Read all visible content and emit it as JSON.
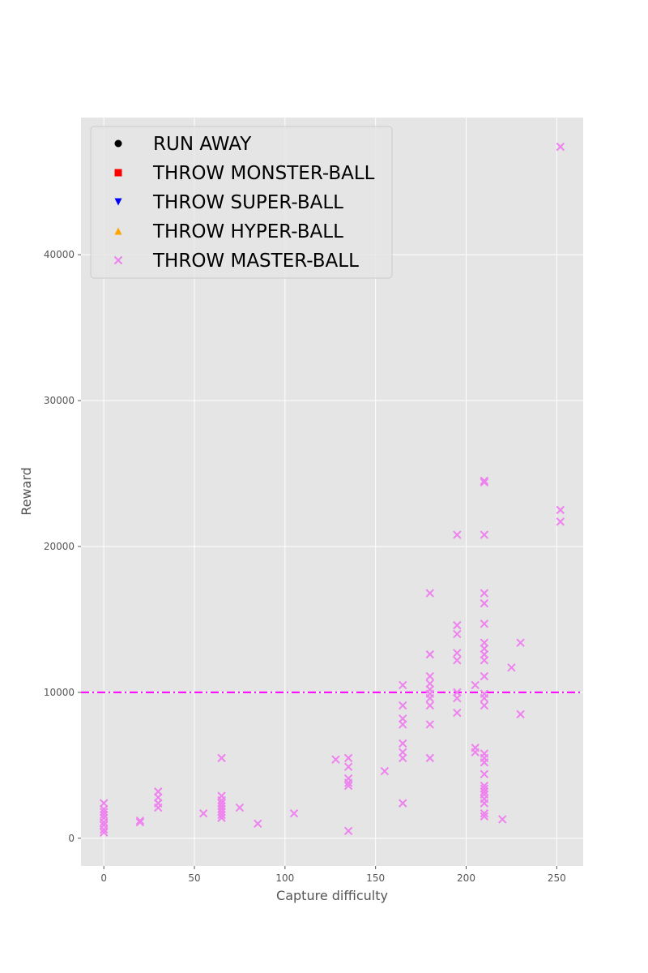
{
  "chart_data": {
    "type": "scatter",
    "xlabel": "Capture difficulty",
    "ylabel": "Reward",
    "xlim": [
      -12.6,
      264.6
    ],
    "ylim": [
      -1900,
      49400
    ],
    "xticks": [
      0,
      50,
      100,
      150,
      200,
      250
    ],
    "yticks": [
      0,
      10000,
      20000,
      30000,
      40000
    ],
    "grid": true,
    "legend_position": "top-left",
    "colors": {
      "background": "#e5e5e5",
      "grid": "#ffffff",
      "threshold": "#ff00ff"
    },
    "threshold_line": {
      "y": 10000,
      "style": "dash-dot"
    },
    "series": [
      {
        "name": "RUN AWAY",
        "marker": "circle",
        "color": "#000000",
        "points": []
      },
      {
        "name": "THROW MONSTER-BALL",
        "marker": "square",
        "color": "#ff0000",
        "points": []
      },
      {
        "name": "THROW SUPER-BALL",
        "marker": "triangle-down",
        "color": "#0000ff",
        "points": []
      },
      {
        "name": "THROW HYPER-BALL",
        "marker": "triangle-up",
        "color": "#ffa500",
        "points": []
      },
      {
        "name": "THROW MASTER-BALL",
        "marker": "x",
        "color": "#ee82ee",
        "points": [
          [
            0,
            2400
          ],
          [
            0,
            2000
          ],
          [
            0,
            1800
          ],
          [
            0,
            1600
          ],
          [
            0,
            1400
          ],
          [
            0,
            1100
          ],
          [
            0,
            900
          ],
          [
            0,
            600
          ],
          [
            0,
            400
          ],
          [
            20,
            1200
          ],
          [
            20,
            1100
          ],
          [
            30,
            3200
          ],
          [
            30,
            2800
          ],
          [
            30,
            2400
          ],
          [
            30,
            2100
          ],
          [
            55,
            1700
          ],
          [
            65,
            5500
          ],
          [
            65,
            2900
          ],
          [
            65,
            2600
          ],
          [
            65,
            2400
          ],
          [
            65,
            2200
          ],
          [
            65,
            2000
          ],
          [
            65,
            1800
          ],
          [
            65,
            1600
          ],
          [
            65,
            1400
          ],
          [
            75,
            2100
          ],
          [
            85,
            1000
          ],
          [
            105,
            1700
          ],
          [
            128,
            5400
          ],
          [
            135,
            5500
          ],
          [
            135,
            4900
          ],
          [
            135,
            4100
          ],
          [
            135,
            3800
          ],
          [
            135,
            3600
          ],
          [
            135,
            500
          ],
          [
            155,
            4600
          ],
          [
            165,
            10500
          ],
          [
            165,
            9100
          ],
          [
            165,
            8200
          ],
          [
            165,
            7800
          ],
          [
            165,
            6500
          ],
          [
            165,
            5900
          ],
          [
            165,
            5500
          ],
          [
            165,
            2400
          ],
          [
            180,
            16800
          ],
          [
            180,
            12600
          ],
          [
            180,
            11100
          ],
          [
            180,
            10600
          ],
          [
            180,
            10200
          ],
          [
            180,
            9900
          ],
          [
            180,
            9600
          ],
          [
            180,
            9100
          ],
          [
            180,
            7800
          ],
          [
            180,
            5500
          ],
          [
            195,
            20800
          ],
          [
            195,
            14600
          ],
          [
            195,
            14000
          ],
          [
            195,
            12700
          ],
          [
            195,
            12200
          ],
          [
            195,
            10000
          ],
          [
            195,
            9600
          ],
          [
            195,
            8600
          ],
          [
            205,
            6200
          ],
          [
            205,
            5900
          ],
          [
            205,
            10500
          ],
          [
            210,
            24500
          ],
          [
            210,
            24400
          ],
          [
            210,
            20800
          ],
          [
            210,
            16800
          ],
          [
            210,
            16100
          ],
          [
            210,
            14700
          ],
          [
            210,
            13400
          ],
          [
            210,
            13000
          ],
          [
            210,
            12600
          ],
          [
            210,
            12200
          ],
          [
            210,
            11100
          ],
          [
            210,
            9900
          ],
          [
            210,
            9600
          ],
          [
            210,
            9100
          ],
          [
            210,
            5800
          ],
          [
            210,
            5500
          ],
          [
            210,
            5200
          ],
          [
            210,
            4400
          ],
          [
            210,
            3600
          ],
          [
            210,
            3400
          ],
          [
            210,
            3200
          ],
          [
            210,
            3000
          ],
          [
            210,
            2700
          ],
          [
            210,
            2400
          ],
          [
            210,
            1700
          ],
          [
            210,
            1500
          ],
          [
            220,
            1300
          ],
          [
            225,
            11700
          ],
          [
            230,
            13400
          ],
          [
            230,
            8500
          ],
          [
            252,
            47400
          ],
          [
            252,
            22500
          ],
          [
            252,
            21700
          ]
        ]
      }
    ]
  }
}
